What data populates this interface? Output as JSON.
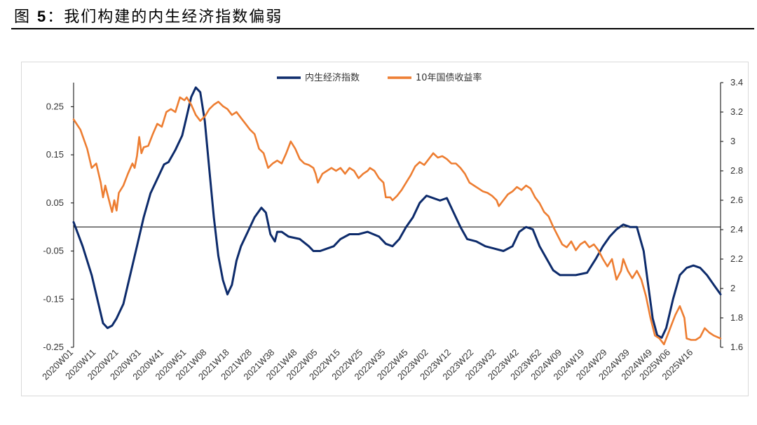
{
  "figure": {
    "label": "图",
    "number": "5",
    "separator": "：",
    "title": "我们构建的内生经济指数偏弱"
  },
  "chart_data": {
    "type": "line",
    "title": "我们构建的内生经济指数偏弱",
    "legend_position": "top-center",
    "x_tick_labels": [
      "2020W01",
      "2020W11",
      "2020W21",
      "2020W31",
      "2020W41",
      "2020W51",
      "2021W08",
      "2021W18",
      "2021W28",
      "2021W38",
      "2021W48",
      "2022W05",
      "2022W15",
      "2022W25",
      "2022W35",
      "2022W45",
      "2023W02",
      "2023W12",
      "2023W22",
      "2023W32",
      "2023W42",
      "2023W52",
      "2024W09",
      "2024W19",
      "2024W29",
      "2024W39",
      "2024W49",
      "2025W06",
      "2025W16"
    ],
    "x_tick_index": [
      0,
      10,
      20,
      30,
      40,
      50,
      59,
      69,
      79,
      89,
      99,
      108,
      118,
      128,
      138,
      148,
      157,
      167,
      177,
      187,
      197,
      207,
      216,
      226,
      236,
      246,
      256,
      264,
      274
    ],
    "total_weeks": 287,
    "y_left": {
      "range": [
        -0.25,
        0.3
      ],
      "ticks": [
        0.25,
        0.15,
        0.05,
        -0.05,
        -0.15,
        -0.25
      ],
      "tick_labels": [
        "0.25",
        "0.15",
        "0.05",
        "-0.05",
        "-0.15",
        "-0.25"
      ]
    },
    "y_right": {
      "range": [
        1.6,
        3.4
      ],
      "ticks": [
        3.4,
        3.2,
        3.0,
        2.8,
        2.6,
        2.4,
        2.2,
        2.0,
        1.8,
        1.6
      ],
      "tick_labels": [
        "3.4",
        "3.2",
        "3",
        "2.8",
        "2.6",
        "2.4",
        "2.2",
        "2",
        "1.8",
        "1.6"
      ]
    },
    "zero_line": 0,
    "series": [
      {
        "name": "内生经济指数",
        "axis": "left",
        "color": "#0d2b6b",
        "points": [
          [
            0,
            0.01
          ],
          [
            4,
            -0.04
          ],
          [
            8,
            -0.1
          ],
          [
            11,
            -0.16
          ],
          [
            13,
            -0.2
          ],
          [
            15,
            -0.21
          ],
          [
            17,
            -0.205
          ],
          [
            19,
            -0.19
          ],
          [
            22,
            -0.16
          ],
          [
            25,
            -0.1
          ],
          [
            28,
            -0.04
          ],
          [
            31,
            0.02
          ],
          [
            34,
            0.07
          ],
          [
            37,
            0.1
          ],
          [
            40,
            0.13
          ],
          [
            42,
            0.135
          ],
          [
            45,
            0.16
          ],
          [
            48,
            0.19
          ],
          [
            50,
            0.23
          ],
          [
            52,
            0.27
          ],
          [
            54,
            0.29
          ],
          [
            56,
            0.28
          ],
          [
            58,
            0.22
          ],
          [
            60,
            0.12
          ],
          [
            62,
            0.02
          ],
          [
            64,
            -0.06
          ],
          [
            66,
            -0.11
          ],
          [
            68,
            -0.14
          ],
          [
            70,
            -0.12
          ],
          [
            72,
            -0.07
          ],
          [
            74,
            -0.04
          ],
          [
            77,
            -0.01
          ],
          [
            80,
            0.02
          ],
          [
            83,
            0.04
          ],
          [
            85,
            0.03
          ],
          [
            87,
            -0.015
          ],
          [
            89,
            -0.03
          ],
          [
            90,
            -0.01
          ],
          [
            92,
            -0.01
          ],
          [
            95,
            -0.02
          ],
          [
            100,
            -0.025
          ],
          [
            104,
            -0.04
          ],
          [
            106,
            -0.05
          ],
          [
            109,
            -0.05
          ],
          [
            112,
            -0.045
          ],
          [
            115,
            -0.04
          ],
          [
            118,
            -0.025
          ],
          [
            122,
            -0.015
          ],
          [
            126,
            -0.015
          ],
          [
            130,
            -0.01
          ],
          [
            135,
            -0.02
          ],
          [
            138,
            -0.035
          ],
          [
            141,
            -0.04
          ],
          [
            144,
            -0.025
          ],
          [
            147,
            0.0
          ],
          [
            150,
            0.02
          ],
          [
            153,
            0.05
          ],
          [
            156,
            0.065
          ],
          [
            159,
            0.06
          ],
          [
            162,
            0.055
          ],
          [
            165,
            0.06
          ],
          [
            168,
            0.03
          ],
          [
            171,
            0.0
          ],
          [
            174,
            -0.025
          ],
          [
            178,
            -0.03
          ],
          [
            182,
            -0.04
          ],
          [
            186,
            -0.045
          ],
          [
            190,
            -0.05
          ],
          [
            194,
            -0.04
          ],
          [
            197,
            -0.01
          ],
          [
            200,
            0.0
          ],
          [
            203,
            -0.005
          ],
          [
            206,
            -0.04
          ],
          [
            209,
            -0.065
          ],
          [
            212,
            -0.09
          ],
          [
            215,
            -0.1
          ],
          [
            218,
            -0.1
          ],
          [
            222,
            -0.1
          ],
          [
            227,
            -0.095
          ],
          [
            231,
            -0.065
          ],
          [
            234,
            -0.04
          ],
          [
            237,
            -0.02
          ],
          [
            240,
            -0.005
          ],
          [
            243,
            0.005
          ],
          [
            246,
            0.0
          ],
          [
            249,
            0.0
          ],
          [
            252,
            -0.05
          ],
          [
            254,
            -0.12
          ],
          [
            256,
            -0.19
          ],
          [
            258,
            -0.225
          ],
          [
            260,
            -0.23
          ],
          [
            262,
            -0.21
          ],
          [
            265,
            -0.15
          ],
          [
            268,
            -0.1
          ],
          [
            271,
            -0.085
          ],
          [
            274,
            -0.08
          ],
          [
            277,
            -0.085
          ],
          [
            280,
            -0.1
          ],
          [
            283,
            -0.12
          ],
          [
            286,
            -0.14
          ]
        ]
      },
      {
        "name": "10年国债收益率",
        "axis": "right",
        "color": "#ed7d31",
        "points": [
          [
            0,
            3.15
          ],
          [
            3,
            3.08
          ],
          [
            6,
            2.95
          ],
          [
            8,
            2.82
          ],
          [
            10,
            2.85
          ],
          [
            12,
            2.72
          ],
          [
            13,
            2.62
          ],
          [
            14,
            2.7
          ],
          [
            16,
            2.58
          ],
          [
            17,
            2.52
          ],
          [
            18,
            2.6
          ],
          [
            19,
            2.53
          ],
          [
            20,
            2.65
          ],
          [
            22,
            2.7
          ],
          [
            24,
            2.78
          ],
          [
            26,
            2.85
          ],
          [
            27,
            2.82
          ],
          [
            28,
            2.9
          ],
          [
            29,
            3.03
          ],
          [
            30,
            2.92
          ],
          [
            31,
            2.96
          ],
          [
            33,
            2.97
          ],
          [
            35,
            3.05
          ],
          [
            37,
            3.12
          ],
          [
            39,
            3.1
          ],
          [
            41,
            3.2
          ],
          [
            43,
            3.22
          ],
          [
            45,
            3.2
          ],
          [
            47,
            3.3
          ],
          [
            49,
            3.28
          ],
          [
            50,
            3.3
          ],
          [
            52,
            3.25
          ],
          [
            54,
            3.18
          ],
          [
            56,
            3.14
          ],
          [
            58,
            3.17
          ],
          [
            60,
            3.22
          ],
          [
            62,
            3.25
          ],
          [
            64,
            3.27
          ],
          [
            66,
            3.24
          ],
          [
            68,
            3.22
          ],
          [
            70,
            3.18
          ],
          [
            72,
            3.2
          ],
          [
            74,
            3.16
          ],
          [
            76,
            3.12
          ],
          [
            78,
            3.08
          ],
          [
            80,
            3.05
          ],
          [
            82,
            2.95
          ],
          [
            84,
            2.92
          ],
          [
            86,
            2.82
          ],
          [
            88,
            2.85
          ],
          [
            90,
            2.87
          ],
          [
            92,
            2.85
          ],
          [
            94,
            2.92
          ],
          [
            96,
            3.0
          ],
          [
            98,
            2.95
          ],
          [
            100,
            2.88
          ],
          [
            102,
            2.85
          ],
          [
            104,
            2.84
          ],
          [
            106,
            2.82
          ],
          [
            107,
            2.78
          ],
          [
            108,
            2.72
          ],
          [
            110,
            2.78
          ],
          [
            112,
            2.8
          ],
          [
            114,
            2.82
          ],
          [
            116,
            2.8
          ],
          [
            118,
            2.82
          ],
          [
            120,
            2.78
          ],
          [
            122,
            2.82
          ],
          [
            124,
            2.8
          ],
          [
            126,
            2.75
          ],
          [
            128,
            2.78
          ],
          [
            130,
            2.8
          ],
          [
            131,
            2.82
          ],
          [
            133,
            2.8
          ],
          [
            135,
            2.75
          ],
          [
            137,
            2.72
          ],
          [
            138,
            2.62
          ],
          [
            140,
            2.62
          ],
          [
            141,
            2.6
          ],
          [
            143,
            2.63
          ],
          [
            145,
            2.67
          ],
          [
            147,
            2.72
          ],
          [
            149,
            2.77
          ],
          [
            151,
            2.83
          ],
          [
            153,
            2.86
          ],
          [
            155,
            2.84
          ],
          [
            157,
            2.88
          ],
          [
            159,
            2.92
          ],
          [
            161,
            2.89
          ],
          [
            163,
            2.9
          ],
          [
            165,
            2.88
          ],
          [
            167,
            2.85
          ],
          [
            169,
            2.85
          ],
          [
            171,
            2.82
          ],
          [
            173,
            2.78
          ],
          [
            175,
            2.72
          ],
          [
            177,
            2.7
          ],
          [
            179,
            2.68
          ],
          [
            181,
            2.66
          ],
          [
            183,
            2.65
          ],
          [
            185,
            2.63
          ],
          [
            187,
            2.6
          ],
          [
            188,
            2.56
          ],
          [
            190,
            2.6
          ],
          [
            192,
            2.64
          ],
          [
            194,
            2.66
          ],
          [
            196,
            2.69
          ],
          [
            198,
            2.67
          ],
          [
            200,
            2.7
          ],
          [
            202,
            2.68
          ],
          [
            204,
            2.62
          ],
          [
            206,
            2.58
          ],
          [
            208,
            2.52
          ],
          [
            210,
            2.49
          ],
          [
            212,
            2.42
          ],
          [
            214,
            2.36
          ],
          [
            216,
            2.3
          ],
          [
            218,
            2.28
          ],
          [
            220,
            2.32
          ],
          [
            222,
            2.26
          ],
          [
            224,
            2.3
          ],
          [
            226,
            2.32
          ],
          [
            228,
            2.28
          ],
          [
            230,
            2.3
          ],
          [
            232,
            2.26
          ],
          [
            234,
            2.2
          ],
          [
            236,
            2.15
          ],
          [
            238,
            2.2
          ],
          [
            240,
            2.06
          ],
          [
            242,
            2.12
          ],
          [
            243,
            2.2
          ],
          [
            245,
            2.12
          ],
          [
            247,
            2.07
          ],
          [
            249,
            2.12
          ],
          [
            251,
            2.06
          ],
          [
            253,
            1.95
          ],
          [
            255,
            1.8
          ],
          [
            257,
            1.68
          ],
          [
            259,
            1.66
          ],
          [
            261,
            1.62
          ],
          [
            263,
            1.7
          ],
          [
            265,
            1.78
          ],
          [
            266,
            1.82
          ],
          [
            268,
            1.88
          ],
          [
            270,
            1.8
          ],
          [
            271,
            1.66
          ],
          [
            273,
            1.65
          ],
          [
            275,
            1.65
          ],
          [
            277,
            1.67
          ],
          [
            279,
            1.73
          ],
          [
            281,
            1.7
          ],
          [
            283,
            1.68
          ],
          [
            286,
            1.66
          ]
        ]
      }
    ]
  }
}
